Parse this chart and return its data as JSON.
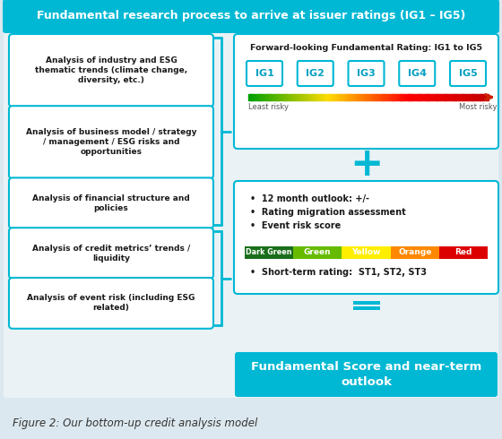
{
  "title": "Fundamental research process to arrive at issuer ratings (IG1 – IG5)",
  "title_bg": "#00b8d4",
  "title_color": "white",
  "bg_color": "#dce8ef",
  "main_bg": "#eaf2f6",
  "box_bg": "white",
  "box_border": "#00b8d4",
  "left_boxes": [
    "Analysis of industry and ESG\nthematic trends (climate change,\ndiversity, etc.)",
    "Analysis of business model / strategy\n/ management / ESG risks and\nopportunities",
    "Analysis of financial structure and\npolicies",
    "Analysis of credit metrics’ trends /\nliquidity",
    "Analysis of event risk (including ESG\nrelated)"
  ],
  "rating_title": "Forward-looking Fundamental Rating: IG1 to IG5",
  "ig_labels": [
    "IG1",
    "IG2",
    "IG3",
    "IG4",
    "IG5"
  ],
  "least_risky": "Least risky",
  "most_risky": "Most risky",
  "bullet_points": [
    "12 month outlook: +/-",
    "Rating migration assessment",
    "Event risk score"
  ],
  "color_bar": [
    {
      "label": "Dark Green",
      "color": "#1a6e1a"
    },
    {
      "label": "Green",
      "color": "#66bb00"
    },
    {
      "label": "Yellow",
      "color": "#ffee00"
    },
    {
      "label": "Orange",
      "color": "#ff8800"
    },
    {
      "label": "Red",
      "color": "#dd0000"
    }
  ],
  "short_term": "Short-term rating:  ST1, ST2, ST3",
  "final_box_text": "Fundamental Score and near-term\noutlook",
  "final_box_bg": "#00b8d4",
  "caption": "Figure 2: Our bottom-up credit analysis model",
  "plus_color": "#00b8d4",
  "equals_color": "#00b8d4"
}
